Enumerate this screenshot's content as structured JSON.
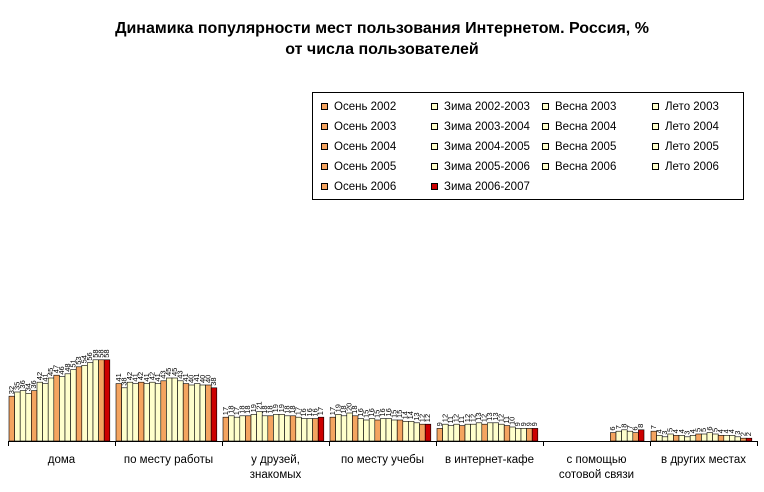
{
  "chart_data": {
    "type": "bar",
    "title_lines": [
      "Динамика популярности мест пользования Интернетом. Россия, %",
      "от числа пользователей"
    ],
    "categories": [
      "дома",
      "по месту работы",
      "у друзей,\nзнакомых",
      "по месту учебы",
      "в интернет-кафе",
      "с помощью\nсотовой связи",
      "в других местах"
    ],
    "series": [
      {
        "name": "Осень 2002",
        "color": "#F4A460",
        "values": [
          32,
          41,
          17,
          17,
          9,
          null,
          7
        ]
      },
      {
        "name": "Зима 2002-2003",
        "color": "#FFFFCC",
        "values": [
          35,
          38,
          18,
          19,
          12,
          null,
          4
        ]
      },
      {
        "name": "Весна 2003",
        "color": "#FFFFCC",
        "values": [
          36,
          42,
          17,
          18,
          11,
          null,
          3
        ]
      },
      {
        "name": "Лето 2003",
        "color": "#FFFFCC",
        "values": [
          34,
          41,
          18,
          20,
          12,
          null,
          5
        ]
      },
      {
        "name": "Осень 2003",
        "color": "#F4A460",
        "values": [
          36,
          42,
          18,
          18,
          11,
          null,
          4
        ]
      },
      {
        "name": "Зима 2003-2004",
        "color": "#FFFFCC",
        "values": [
          42,
          41,
          19,
          16,
          12,
          null,
          4
        ]
      },
      {
        "name": "Весна 2004",
        "color": "#FFFFCC",
        "values": [
          41,
          42,
          21,
          15,
          12,
          null,
          3
        ]
      },
      {
        "name": "Лето 2004",
        "color": "#FFFFCC",
        "values": [
          45,
          41,
          18,
          16,
          13,
          null,
          4
        ]
      },
      {
        "name": "Осень 2004",
        "color": "#F4A460",
        "values": [
          47,
          43,
          18,
          15,
          12,
          null,
          5
        ]
      },
      {
        "name": "Зима 2004-2005",
        "color": "#FFFFCC",
        "values": [
          46,
          45,
          19,
          16,
          13,
          null,
          5
        ]
      },
      {
        "name": "Весна 2005",
        "color": "#FFFFCC",
        "values": [
          48,
          45,
          19,
          16,
          13,
          null,
          6
        ]
      },
      {
        "name": "Лето 2005",
        "color": "#FFFFCC",
        "values": [
          51,
          43,
          18,
          15,
          12,
          null,
          5
        ]
      },
      {
        "name": "Осень 2005",
        "color": "#F4A460",
        "values": [
          53,
          41,
          18,
          15,
          11,
          6,
          4
        ]
      },
      {
        "name": "Зима 2005-2006",
        "color": "#FFFFCC",
        "values": [
          54,
          40,
          17,
          14,
          10,
          7,
          4
        ]
      },
      {
        "name": "Весна 2006",
        "color": "#FFFFCC",
        "values": [
          56,
          41,
          16,
          14,
          9,
          8,
          4
        ]
      },
      {
        "name": "Лето 2006",
        "color": "#FFFFCC",
        "values": [
          58,
          40,
          16,
          13,
          9,
          7,
          3
        ]
      },
      {
        "name": "Осень 2006",
        "color": "#F4A460",
        "values": [
          58,
          40,
          16,
          12,
          9,
          6,
          2
        ]
      },
      {
        "name": "Зима 2006-2007",
        "color": "#CC0000",
        "values": [
          58,
          38,
          17,
          12,
          9,
          8,
          2
        ]
      }
    ],
    "legend_position": "top-right",
    "ylim": [
      0,
      60
    ],
    "grid": false
  }
}
